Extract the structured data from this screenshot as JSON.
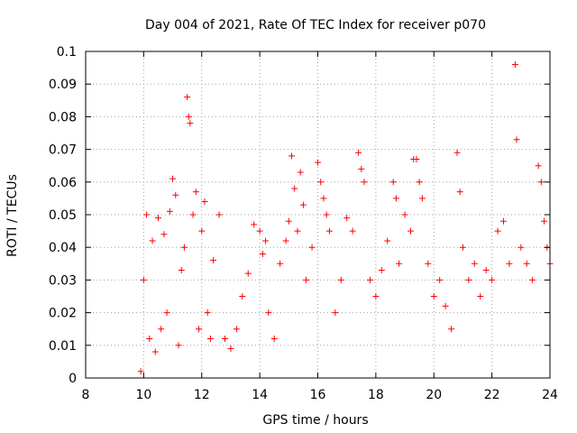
{
  "chart_data": {
    "type": "scatter",
    "title": "Day 004 of 2021, Rate Of TEC Index for receiver p070",
    "xlabel": "GPS time / hours",
    "ylabel": "ROTI / TECUs",
    "xlim": [
      8,
      24
    ],
    "ylim": [
      0,
      0.1
    ],
    "xticks": [
      "8",
      "10",
      "12",
      "14",
      "16",
      "18",
      "20",
      "22",
      "24"
    ],
    "yticks": [
      "0",
      "0.01",
      "0.02",
      "0.03",
      "0.04",
      "0.05",
      "0.06",
      "0.07",
      "0.08",
      "0.09",
      "0.1"
    ],
    "grid": true,
    "marker": "+",
    "color": "#ff0000",
    "series": [
      {
        "name": "ROTI",
        "x": [
          9.9,
          10.0,
          10.1,
          10.2,
          10.3,
          10.4,
          10.5,
          10.6,
          10.7,
          10.8,
          10.9,
          11.0,
          11.1,
          11.2,
          11.3,
          11.4,
          11.5,
          11.55,
          11.6,
          11.7,
          11.8,
          11.9,
          12.0,
          12.1,
          12.2,
          12.3,
          12.4,
          12.6,
          12.8,
          13.0,
          13.2,
          13.4,
          13.6,
          13.8,
          14.0,
          14.1,
          14.2,
          14.3,
          14.5,
          14.7,
          14.9,
          15.0,
          15.1,
          15.2,
          15.3,
          15.4,
          15.5,
          15.6,
          15.8,
          16.0,
          16.1,
          16.2,
          16.3,
          16.4,
          16.6,
          16.8,
          17.0,
          17.2,
          17.4,
          17.5,
          17.6,
          17.8,
          18.0,
          18.2,
          18.4,
          18.6,
          18.7,
          18.8,
          19.0,
          19.2,
          19.3,
          19.4,
          19.5,
          19.6,
          19.8,
          20.0,
          20.2,
          20.4,
          20.6,
          20.8,
          20.9,
          21.0,
          21.2,
          21.4,
          21.6,
          21.8,
          22.0,
          22.2,
          22.4,
          22.6,
          22.8,
          22.85,
          23.0,
          23.2,
          23.4,
          23.6,
          23.7,
          23.8,
          23.9,
          24.0
        ],
        "y": [
          0.002,
          0.03,
          0.05,
          0.012,
          0.042,
          0.008,
          0.049,
          0.015,
          0.044,
          0.02,
          0.051,
          0.061,
          0.056,
          0.01,
          0.033,
          0.04,
          0.086,
          0.08,
          0.078,
          0.05,
          0.057,
          0.015,
          0.045,
          0.054,
          0.02,
          0.012,
          0.036,
          0.05,
          0.012,
          0.009,
          0.015,
          0.025,
          0.032,
          0.047,
          0.045,
          0.038,
          0.042,
          0.02,
          0.012,
          0.035,
          0.042,
          0.048,
          0.068,
          0.058,
          0.045,
          0.063,
          0.053,
          0.03,
          0.04,
          0.066,
          0.06,
          0.055,
          0.05,
          0.045,
          0.02,
          0.03,
          0.049,
          0.045,
          0.069,
          0.064,
          0.06,
          0.03,
          0.025,
          0.033,
          0.042,
          0.06,
          0.055,
          0.035,
          0.05,
          0.045,
          0.067,
          0.067,
          0.06,
          0.055,
          0.035,
          0.025,
          0.03,
          0.022,
          0.015,
          0.069,
          0.057,
          0.04,
          0.03,
          0.035,
          0.025,
          0.033,
          0.03,
          0.045,
          0.048,
          0.035,
          0.096,
          0.073,
          0.04,
          0.035,
          0.03,
          0.065,
          0.06,
          0.048,
          0.04,
          0.035
        ]
      }
    ]
  }
}
